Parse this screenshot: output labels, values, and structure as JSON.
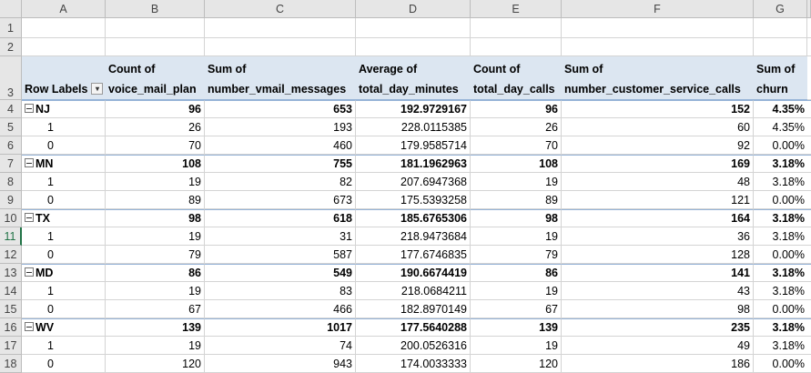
{
  "column_headers": [
    "A",
    "B",
    "C",
    "D",
    "E",
    "F",
    "G"
  ],
  "row_numbers": [
    1,
    2,
    3,
    4,
    5,
    6,
    7,
    8,
    9,
    10,
    11,
    12,
    13,
    14,
    15,
    16,
    17,
    18
  ],
  "pivot": {
    "headers": [
      [
        "Row Labels"
      ],
      [
        "Count of",
        "voice_mail_plan"
      ],
      [
        "Sum of",
        "number_vmail_messages"
      ],
      [
        "Average of",
        "total_day_minutes"
      ],
      [
        "Count of",
        "total_day_calls"
      ],
      [
        "Sum of",
        "number_customer_service_calls"
      ],
      [
        "Sum of",
        "churn"
      ]
    ],
    "groups": [
      {
        "label": "NJ",
        "values": [
          96,
          653,
          192.9729167,
          96,
          152,
          "4.35%"
        ],
        "children": [
          {
            "label": "1",
            "values": [
              26,
              193,
              228.0115385,
              26,
              60,
              "4.35%"
            ]
          },
          {
            "label": "0",
            "values": [
              70,
              460,
              179.9585714,
              70,
              92,
              "0.00%"
            ]
          }
        ]
      },
      {
        "label": "MN",
        "values": [
          108,
          755,
          181.1962963,
          108,
          169,
          "3.18%"
        ],
        "children": [
          {
            "label": "1",
            "values": [
              19,
              82,
              207.6947368,
              19,
              48,
              "3.18%"
            ]
          },
          {
            "label": "0",
            "values": [
              89,
              673,
              175.5393258,
              89,
              121,
              "0.00%"
            ]
          }
        ]
      },
      {
        "label": "TX",
        "values": [
          98,
          618,
          185.6765306,
          98,
          164,
          "3.18%"
        ],
        "children": [
          {
            "label": "1",
            "values": [
              19,
              31,
              218.9473684,
              19,
              36,
              "3.18%"
            ]
          },
          {
            "label": "0",
            "values": [
              79,
              587,
              177.6746835,
              79,
              128,
              "0.00%"
            ]
          }
        ]
      },
      {
        "label": "MD",
        "values": [
          86,
          549,
          190.6674419,
          86,
          141,
          "3.18%"
        ],
        "children": [
          {
            "label": "1",
            "values": [
              19,
              83,
              218.0684211,
              19,
              43,
              "3.18%"
            ]
          },
          {
            "label": "0",
            "values": [
              67,
              466,
              182.8970149,
              67,
              98,
              "0.00%"
            ]
          }
        ]
      },
      {
        "label": "WV",
        "values": [
          139,
          1017,
          177.5640288,
          139,
          235,
          "3.18%"
        ],
        "children": [
          {
            "label": "1",
            "values": [
              19,
              74,
              200.0526316,
              19,
              49,
              "3.18%"
            ]
          },
          {
            "label": "0",
            "values": [
              120,
              943,
              174.0033333,
              120,
              186,
              "0.00%"
            ]
          }
        ]
      }
    ]
  }
}
